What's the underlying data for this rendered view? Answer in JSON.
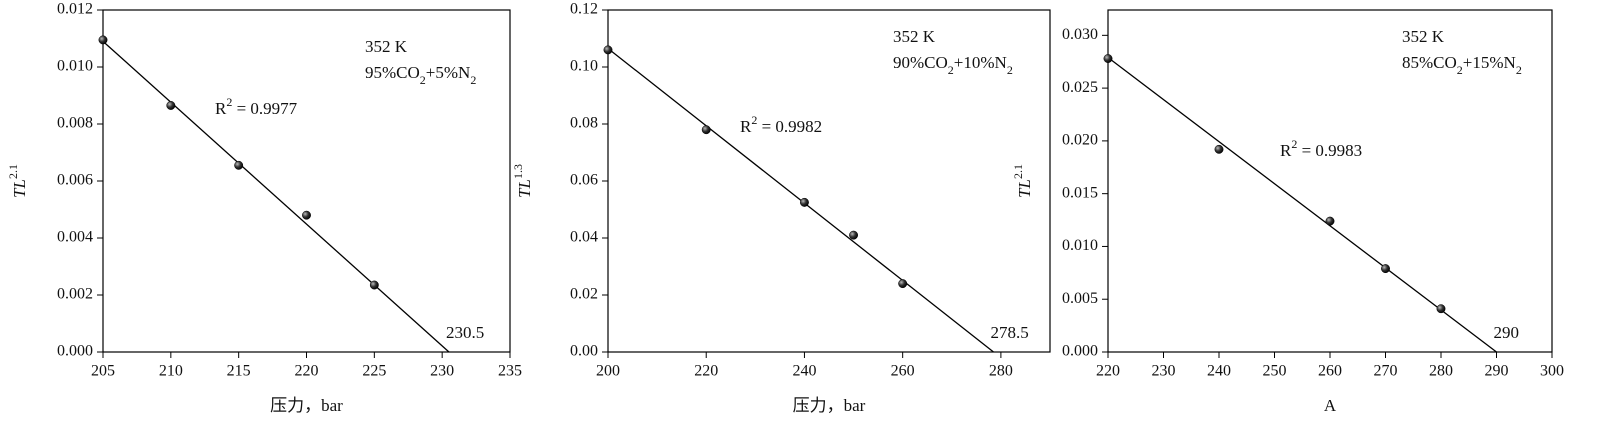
{
  "chart_data": [
    {
      "type": "scatter",
      "color": "#000000",
      "x": [
        205,
        210,
        215,
        220,
        225
      ],
      "values": [
        0.01095,
        0.00865,
        0.00655,
        0.0048,
        0.00235
      ],
      "fit": {
        "x": [
          205,
          230.5
        ],
        "y": [
          0.0109,
          0
        ]
      },
      "xlim": [
        205,
        235
      ],
      "xticks": [
        205,
        210,
        215,
        220,
        225,
        230,
        235
      ],
      "ylim": [
        0,
        0.012
      ],
      "yticks": [
        {
          "value": 0,
          "label": "0.000"
        },
        {
          "value": 0.002,
          "label": "0.002"
        },
        {
          "value": 0.004,
          "label": "0.004"
        },
        {
          "value": 0.006,
          "label": "0.006"
        },
        {
          "value": 0.008,
          "label": "0.008"
        },
        {
          "value": 0.01,
          "label": "0.010"
        },
        0.012
      ],
      "xlabel": "压力，bar",
      "ylabel": [
        {
          "text": "TL"
        },
        {
          "text": "2.1",
          "sup": true
        }
      ],
      "condition": "352 K",
      "mixture": [
        {
          "text": "95%CO"
        },
        {
          "text": "2",
          "sub": true
        },
        {
          "text": "+5%N"
        },
        {
          "text": "2",
          "sub": true
        }
      ],
      "r2": [
        {
          "text": "R"
        },
        {
          "text": "2",
          "sup": true
        },
        {
          "text": " = 0.9977"
        }
      ]
    },
    {
      "type": "scatter",
      "color": "#000000",
      "x": [
        200,
        220,
        240,
        250,
        260
      ],
      "values": [
        0.106,
        0.078,
        0.0525,
        0.041,
        0.024
      ],
      "fit": {
        "x": [
          200,
          278.5
        ],
        "y": [
          0.1065,
          0
        ]
      },
      "xlim": [
        200,
        290
      ],
      "xticks": [
        200,
        220,
        240,
        260,
        280
      ],
      "ylim": [
        0,
        0.12
      ],
      "yticks": [
        {
          "value": 0,
          "label": "0.00"
        },
        {
          "value": 0.02,
          "label": "0.02"
        },
        {
          "value": 0.04,
          "label": "0.04"
        },
        {
          "value": 0.06,
          "label": "0.06"
        },
        {
          "value": 0.08,
          "label": "0.08"
        },
        {
          "value": 0.1,
          "label": "0.10"
        },
        0.12
      ],
      "xlabel": "压力，bar",
      "ylabel": [
        {
          "text": "TL"
        },
        {
          "text": "1.3",
          "sup": true
        }
      ],
      "condition": "352 K",
      "mixture": [
        {
          "text": "90%CO"
        },
        {
          "text": "2",
          "sub": true
        },
        {
          "text": "+10%N"
        },
        {
          "text": "2",
          "sub": true
        }
      ],
      "r2": [
        {
          "text": "R"
        },
        {
          "text": "2",
          "sup": true
        },
        {
          "text": " = 0.9982"
        }
      ]
    },
    {
      "type": "scatter",
      "color": "#000000",
      "x": [
        220,
        240,
        260,
        270,
        280
      ],
      "values": [
        0.0278,
        0.0192,
        0.0124,
        0.0079,
        0.0041
      ],
      "fit": {
        "x": [
          220,
          290
        ],
        "y": [
          0.0279,
          0
        ]
      },
      "xlim": [
        220,
        300
      ],
      "xticks": [
        220,
        230,
        240,
        250,
        260,
        270,
        280,
        290,
        300
      ],
      "ylim": [
        0,
        0.0324
      ],
      "yticks": [
        {
          "value": 0,
          "label": "0.000"
        },
        {
          "value": 0.005,
          "label": "0.005"
        },
        {
          "value": 0.01,
          "label": "0.010"
        },
        {
          "value": 0.015,
          "label": "0.015"
        },
        {
          "value": 0.02,
          "label": "0.020"
        },
        {
          "value": 0.025,
          "label": "0.025"
        },
        {
          "value": 0.03,
          "label": "0.030"
        }
      ],
      "xlabel": "A",
      "ylabel": [
        {
          "text": "TL"
        },
        {
          "text": "2.1",
          "sup": true
        }
      ],
      "condition": "352 K",
      "mixture": [
        {
          "text": "85%CO"
        },
        {
          "text": "2",
          "sub": true
        },
        {
          "text": "+15%N"
        },
        {
          "text": "2",
          "sub": true
        }
      ],
      "r2": [
        {
          "text": "R"
        },
        {
          "text": "2",
          "sup": true
        },
        {
          "text": " = 0.9983"
        }
      ]
    }
  ]
}
